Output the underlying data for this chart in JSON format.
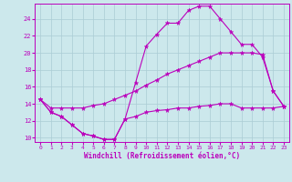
{
  "xlabel": "Windchill (Refroidissement éolien,°C)",
  "xlim": [
    -0.5,
    23.5
  ],
  "ylim": [
    9.5,
    25.8
  ],
  "xticks": [
    0,
    1,
    2,
    3,
    4,
    5,
    6,
    7,
    8,
    9,
    10,
    11,
    12,
    13,
    14,
    15,
    16,
    17,
    18,
    19,
    20,
    21,
    22,
    23
  ],
  "yticks": [
    10,
    12,
    14,
    16,
    18,
    20,
    22,
    24
  ],
  "background_color": "#cce8ec",
  "grid_color": "#aaccd4",
  "line_color": "#bb00bb",
  "line1_x": [
    0,
    1,
    2,
    3,
    4,
    5,
    6,
    7,
    8,
    9,
    10,
    11,
    12,
    13,
    14,
    15,
    16,
    17,
    18,
    19,
    20,
    21,
    22,
    23
  ],
  "line1_y": [
    14.5,
    13.0,
    12.5,
    11.5,
    10.5,
    10.2,
    9.8,
    9.8,
    12.2,
    16.5,
    20.8,
    22.2,
    23.5,
    23.5,
    25.0,
    25.5,
    25.5,
    24.0,
    22.5,
    21.0,
    21.0,
    19.5,
    15.5,
    13.7
  ],
  "line2_x": [
    0,
    1,
    2,
    3,
    4,
    5,
    6,
    7,
    8,
    9,
    10,
    11,
    12,
    13,
    14,
    15,
    16,
    17,
    18,
    19,
    20,
    21,
    22,
    23
  ],
  "line2_y": [
    14.5,
    13.5,
    13.5,
    13.5,
    13.5,
    13.8,
    14.0,
    14.5,
    15.0,
    15.5,
    16.2,
    16.8,
    17.5,
    18.0,
    18.5,
    19.0,
    19.5,
    20.0,
    20.0,
    20.0,
    20.0,
    19.8,
    15.5,
    13.7
  ],
  "line3_x": [
    0,
    1,
    2,
    3,
    4,
    5,
    6,
    7,
    8,
    9,
    10,
    11,
    12,
    13,
    14,
    15,
    16,
    17,
    18,
    19,
    20,
    21,
    22,
    23
  ],
  "line3_y": [
    14.5,
    13.0,
    12.5,
    11.5,
    10.5,
    10.2,
    9.8,
    9.8,
    12.2,
    12.5,
    13.0,
    13.2,
    13.3,
    13.5,
    13.5,
    13.7,
    13.8,
    14.0,
    14.0,
    13.5,
    13.5,
    13.5,
    13.5,
    13.7
  ]
}
